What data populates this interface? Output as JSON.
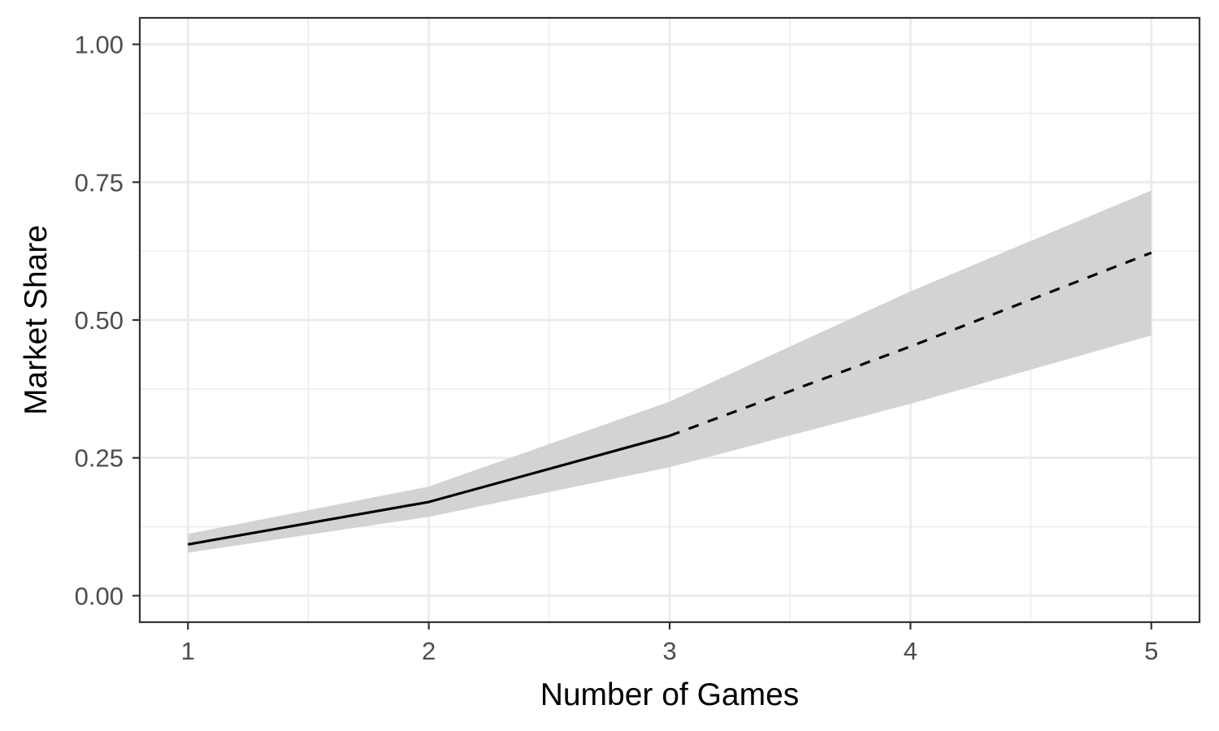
{
  "chart_data": {
    "type": "line",
    "xlabel": "Number of Games",
    "ylabel": "Market Share",
    "xlim": [
      0.8,
      5.2
    ],
    "ylim": [
      -0.048,
      1.048
    ],
    "x_ticks": [
      1,
      2,
      3,
      4,
      5
    ],
    "x_tick_labels": [
      "1",
      "2",
      "3",
      "4",
      "5"
    ],
    "x_minor_ticks": [
      1.5,
      2.5,
      3.5,
      4.5
    ],
    "y_ticks": [
      0,
      0.25,
      0.5,
      0.75,
      1.0
    ],
    "y_tick_labels": [
      "0.00",
      "0.25",
      "0.50",
      "0.75",
      "1.00"
    ],
    "y_minor_ticks": [
      0.125,
      0.375,
      0.625,
      0.875
    ],
    "grid": true,
    "legend": "none",
    "ribbon": {
      "x": [
        1,
        2,
        3,
        4,
        5
      ],
      "lower": [
        0.078,
        0.143,
        0.233,
        0.348,
        0.472
      ],
      "upper": [
        0.112,
        0.198,
        0.352,
        0.552,
        0.735
      ],
      "color": "#d3d3d3"
    },
    "series": [
      {
        "style": "solid",
        "x": [
          1,
          2,
          3
        ],
        "y": [
          0.093,
          0.17,
          0.29
        ],
        "color": "#000000"
      },
      {
        "style": "dashed",
        "x": [
          3,
          4,
          5
        ],
        "y": [
          0.29,
          0.452,
          0.622
        ],
        "color": "#000000"
      }
    ]
  }
}
